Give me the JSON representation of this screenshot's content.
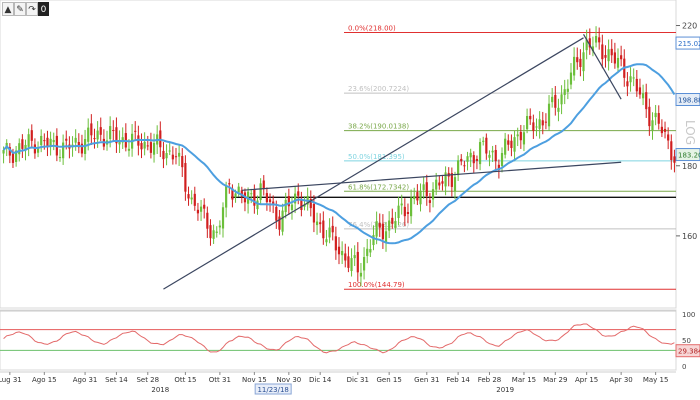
{
  "toolbar": {
    "icon_1": "cursor-icon",
    "icon_2": "draw-tool-icon",
    "icon_3": "expand-icon",
    "badge": "0"
  },
  "colors": {
    "bull": "#6bbf3a",
    "bear": "#d11f1f",
    "ma": "#4d9fe0",
    "trendline": "#3b4660",
    "support": "#111111",
    "fib_top": "#e03030",
    "fib_mid": "#7aa84a",
    "fib_light": "#9fd19f",
    "rsi": "#e36a6a",
    "rsi_upper": "#e65a5a",
    "rsi_lower": "#6cc16c",
    "price_tag_main": "#5b8fd6",
    "price_tag_ma": "#e5edf7"
  },
  "chart_data": {
    "type": "candlestick",
    "price_panel": {
      "ylim": [
        140,
        225
      ],
      "y_ticks": [
        "220",
        "180",
        "160"
      ],
      "last_price": "183.20",
      "ma_value": "198.8818",
      "top_value": "215.0239",
      "moving_average_color": "#4d9fe0",
      "fib_levels": [
        {
          "label": "0.0%(218.00)",
          "value": 218.0
        },
        {
          "label": "23.6%(200.7224)",
          "value": 200.72
        },
        {
          "label": "38.2%(190.0138)",
          "value": 190.01
        },
        {
          "label": "50.0%(181.395)",
          "value": 181.4
        },
        {
          "label": "61.8%(172.7342)",
          "value": 172.73
        },
        {
          "label": "76.4%(162.0126)",
          "value": 162.01
        },
        {
          "label": "100.0%(144.79)",
          "value": 144.79
        }
      ],
      "support_line_value": 171,
      "trendlines": [
        {
          "from": {
            "x": 51,
            "y": 144.8
          },
          "to": {
            "x": 185,
            "y": 216.5
          }
        },
        {
          "from": {
            "x": 76,
            "y": 173
          },
          "to": {
            "x": 197,
            "y": 181
          }
        },
        {
          "from": {
            "x": 185,
            "y": 217.5
          },
          "to": {
            "x": 197,
            "y": 199
          }
        }
      ]
    },
    "rsi_panel": {
      "ylim": [
        0,
        100
      ],
      "y_ticks": [
        "100",
        "50",
        "0"
      ],
      "upper_band": 70,
      "lower_band": 30,
      "last_value": "29.3842"
    },
    "x_axis": {
      "labels": [
        "Lug 31",
        "Ago 15",
        "Ago 31",
        "Set 14",
        "Set 28",
        "Ott 15",
        "Ott 31",
        "Nov 15",
        "Nov 30",
        "Dic 14",
        "Dic 31",
        "Gen 15",
        "Gen 31",
        "Feb 14",
        "Feb 28",
        "Mar 15",
        "Mar 29",
        "Apr 15",
        "Apr 30",
        "May 15"
      ],
      "label_index": [
        2,
        13,
        26,
        36,
        46,
        58,
        69,
        80,
        91,
        101,
        113,
        123,
        135,
        145,
        155,
        166,
        176,
        186,
        197,
        208
      ],
      "year_labels": [
        {
          "text": "2018",
          "index": 50
        },
        {
          "text": "2019",
          "index": 160
        }
      ],
      "crosshair_label": {
        "text": "11/23/18",
        "index": 86
      }
    },
    "candles": []
  },
  "watermark": "LOG"
}
